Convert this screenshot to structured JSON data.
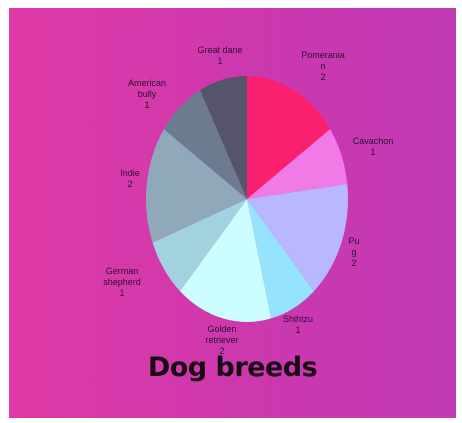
{
  "chart_data": {
    "type": "pie",
    "title": "Dog breeds",
    "slices": [
      {
        "label_lines": [
          "Pomeranian",
          "2"
        ],
        "label_text": [
          "Pomerania",
          "n",
          "2"
        ],
        "value": 2,
        "color": "#fb1f6f"
      },
      {
        "label_lines": [
          "Cavachon",
          "1"
        ],
        "label_text": [
          "Cavachon",
          "1"
        ],
        "value": 1,
        "color": "#f07be6"
      },
      {
        "label_lines": [
          "Pug",
          "2"
        ],
        "label_text": [
          "Pu",
          "g",
          "2"
        ],
        "value": 2,
        "color": "#b8b7ff"
      },
      {
        "label_lines": [
          "Shihtzu",
          "1"
        ],
        "label_text": [
          "Shihtzu",
          "1"
        ],
        "value": 1,
        "color": "#96e3ff"
      },
      {
        "label_lines": [
          "Golden retriever",
          "2"
        ],
        "label_text": [
          "Golden",
          "retriever",
          "2"
        ],
        "value": 2,
        "color": "#ccfdff"
      },
      {
        "label_lines": [
          "German shepherd",
          "1"
        ],
        "label_text": [
          "German",
          "shepherd",
          "1"
        ],
        "value": 1,
        "color": "#a2d2df"
      },
      {
        "label_lines": [
          "Indie",
          "2"
        ],
        "label_text": [
          "Indie",
          "2"
        ],
        "value": 2,
        "color": "#8fa8ba"
      },
      {
        "label_lines": [
          "American bully",
          "1"
        ],
        "label_text": [
          "American",
          "bully",
          "1"
        ],
        "value": 1,
        "color": "#6d7b90"
      },
      {
        "label_lines": [
          "Great dane",
          "1"
        ],
        "label_text": [
          "Great dane",
          "1"
        ],
        "value": 1,
        "color": "#56546b"
      }
    ]
  }
}
